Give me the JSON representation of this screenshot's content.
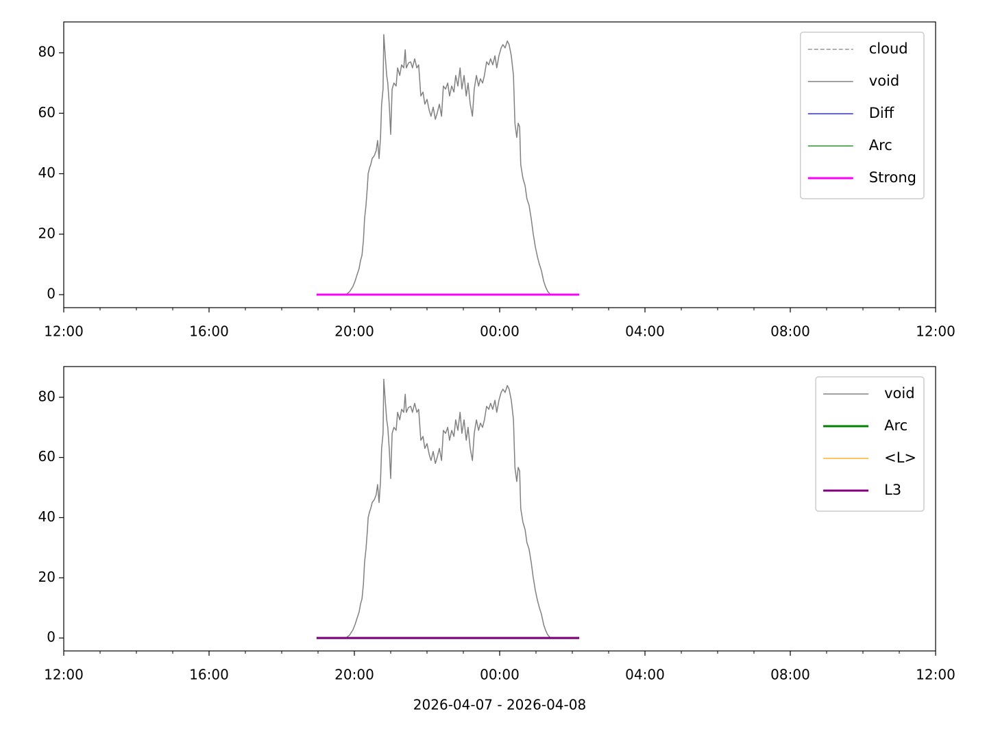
{
  "chart_data": [
    {
      "type": "line",
      "xlim": [
        12,
        36
      ],
      "ylim": [
        -4.3,
        90.2
      ],
      "xticks": [
        {
          "value": 12,
          "label": "12:00"
        },
        {
          "value": 16,
          "label": "16:00"
        },
        {
          "value": 20,
          "label": "20:00"
        },
        {
          "value": 24,
          "label": "00:00"
        },
        {
          "value": 28,
          "label": "04:00"
        },
        {
          "value": 32,
          "label": "08:00"
        },
        {
          "value": 36,
          "label": "12:00"
        }
      ],
      "xminorticks": [
        13,
        14,
        15,
        17,
        18,
        19,
        21,
        22,
        23,
        25,
        26,
        27,
        29,
        30,
        31,
        33,
        34,
        35
      ],
      "yticks": [
        0,
        20,
        40,
        60,
        80
      ],
      "legend": "upper right",
      "series": [
        {
          "name": "cloud",
          "color": "#808080",
          "width": 1.2,
          "dashed": true,
          "x": [
            18.96,
            26.19
          ],
          "values": [
            0,
            0
          ]
        },
        {
          "name": "void",
          "color": "#808080",
          "width": 1.5,
          "dashed": false,
          "x": [
            19.77,
            19.87,
            19.96,
            20.02,
            20.08,
            20.13,
            20.17,
            20.21,
            20.25,
            20.28,
            20.32,
            20.36,
            20.38,
            20.42,
            20.45,
            20.49,
            20.55,
            20.6,
            20.64,
            20.68,
            20.72,
            20.75,
            20.79,
            20.81,
            20.85,
            20.89,
            20.92,
            20.96,
            21.0,
            21.04,
            21.09,
            21.15,
            21.19,
            21.25,
            21.3,
            21.36,
            21.4,
            21.43,
            21.49,
            21.55,
            21.6,
            21.66,
            21.72,
            21.77,
            21.83,
            21.89,
            21.94,
            22.0,
            22.06,
            22.11,
            22.17,
            22.23,
            22.28,
            22.34,
            22.4,
            22.45,
            22.51,
            22.57,
            22.62,
            22.68,
            22.74,
            22.79,
            22.85,
            22.91,
            22.96,
            23.02,
            23.08,
            23.13,
            23.19,
            23.25,
            23.3,
            23.36,
            23.42,
            23.47,
            23.53,
            23.58,
            23.64,
            23.7,
            23.75,
            23.81,
            23.87,
            23.92,
            23.98,
            24.04,
            24.09,
            24.15,
            24.21,
            24.26,
            24.32,
            24.38,
            24.42,
            24.47,
            24.51,
            24.55,
            24.58,
            24.64,
            24.7,
            24.75,
            24.81,
            24.87,
            24.92,
            24.98,
            25.04,
            25.09,
            25.15,
            25.21,
            25.26,
            25.32,
            25.4
          ],
          "values": [
            0,
            1,
            2.7,
            4.5,
            6.8,
            8.6,
            11.3,
            13,
            18,
            25,
            29.5,
            36,
            40,
            42,
            43,
            45,
            46,
            47.6,
            51,
            45,
            52,
            63,
            68,
            86,
            79,
            72.5,
            70,
            63,
            53,
            68,
            70,
            69,
            75,
            72.5,
            76,
            75,
            81,
            75,
            76.6,
            77,
            75,
            78,
            75,
            76,
            65.7,
            67,
            63,
            64.6,
            61,
            59,
            62,
            58,
            60,
            63,
            59,
            69,
            68,
            70,
            65.7,
            69,
            67,
            72.5,
            69,
            75,
            68,
            72.5,
            65.7,
            70,
            63,
            59,
            68,
            72.5,
            69,
            71.4,
            70,
            72.5,
            77,
            76,
            78,
            76,
            79,
            75,
            79,
            81.6,
            82.7,
            81.6,
            83.9,
            82.7,
            79,
            72.5,
            56.7,
            52,
            56.7,
            55.5,
            43,
            38.5,
            36,
            31.7,
            29.5,
            25,
            20.4,
            15.9,
            12.5,
            10.2,
            7.9,
            4.5,
            2.7,
            1.1,
            0
          ]
        },
        {
          "name": "Diff",
          "color": "#0000ff",
          "width": 1.2,
          "dashed": false,
          "x": [
            18.96,
            26.19
          ],
          "values": [
            0,
            0
          ]
        },
        {
          "name": "Arc",
          "color": "#008000",
          "width": 1.2,
          "dashed": false,
          "x": [
            18.96,
            26.19
          ],
          "values": [
            0,
            0
          ]
        },
        {
          "name": "Strong",
          "color": "#ff00ff",
          "width": 3,
          "dashed": false,
          "x": [
            18.96,
            26.19
          ],
          "values": [
            0,
            0
          ]
        }
      ]
    },
    {
      "type": "line",
      "xlim": [
        12,
        36
      ],
      "ylim": [
        -4.3,
        90.2
      ],
      "xticks": [
        {
          "value": 12,
          "label": "12:00"
        },
        {
          "value": 16,
          "label": "16:00"
        },
        {
          "value": 20,
          "label": "20:00"
        },
        {
          "value": 24,
          "label": "00:00"
        },
        {
          "value": 28,
          "label": "04:00"
        },
        {
          "value": 32,
          "label": "08:00"
        },
        {
          "value": 36,
          "label": "12:00"
        }
      ],
      "xminorticks": [
        13,
        14,
        15,
        17,
        18,
        19,
        21,
        22,
        23,
        25,
        26,
        27,
        29,
        30,
        31,
        33,
        34,
        35
      ],
      "yticks": [
        0,
        20,
        40,
        60,
        80
      ],
      "xlabel": "2026-04-07 - 2026-04-08",
      "legend": "upper right",
      "series": [
        {
          "name": "void",
          "color": "#808080",
          "width": 1.5,
          "dashed": false,
          "x": [
            19.77,
            19.87,
            19.96,
            20.02,
            20.08,
            20.13,
            20.17,
            20.21,
            20.25,
            20.28,
            20.32,
            20.36,
            20.38,
            20.42,
            20.45,
            20.49,
            20.55,
            20.6,
            20.64,
            20.68,
            20.72,
            20.75,
            20.79,
            20.81,
            20.85,
            20.89,
            20.92,
            20.96,
            21.0,
            21.04,
            21.09,
            21.15,
            21.19,
            21.25,
            21.3,
            21.36,
            21.4,
            21.43,
            21.49,
            21.55,
            21.6,
            21.66,
            21.72,
            21.77,
            21.83,
            21.89,
            21.94,
            22.0,
            22.06,
            22.11,
            22.17,
            22.23,
            22.28,
            22.34,
            22.4,
            22.45,
            22.51,
            22.57,
            22.62,
            22.68,
            22.74,
            22.79,
            22.85,
            22.91,
            22.96,
            23.02,
            23.08,
            23.13,
            23.19,
            23.25,
            23.3,
            23.36,
            23.42,
            23.47,
            23.53,
            23.58,
            23.64,
            23.7,
            23.75,
            23.81,
            23.87,
            23.92,
            23.98,
            24.04,
            24.09,
            24.15,
            24.21,
            24.26,
            24.32,
            24.38,
            24.42,
            24.47,
            24.51,
            24.55,
            24.58,
            24.64,
            24.7,
            24.75,
            24.81,
            24.87,
            24.92,
            24.98,
            25.04,
            25.09,
            25.15,
            25.21,
            25.26,
            25.32,
            25.4
          ],
          "values": [
            0,
            1,
            2.7,
            4.5,
            6.8,
            8.6,
            11.3,
            13,
            18,
            25,
            29.5,
            36,
            40,
            42,
            43,
            45,
            46,
            47.6,
            51,
            45,
            52,
            63,
            68,
            86,
            79,
            72.5,
            70,
            63,
            53,
            68,
            70,
            69,
            75,
            72.5,
            76,
            75,
            81,
            75,
            76.6,
            77,
            75,
            78,
            75,
            76,
            65.7,
            67,
            63,
            64.6,
            61,
            59,
            62,
            58,
            60,
            63,
            59,
            69,
            68,
            70,
            65.7,
            69,
            67,
            72.5,
            69,
            75,
            68,
            72.5,
            65.7,
            70,
            63,
            59,
            68,
            72.5,
            69,
            71.4,
            70,
            72.5,
            77,
            76,
            78,
            76,
            79,
            75,
            79,
            81.6,
            82.7,
            81.6,
            83.9,
            82.7,
            79,
            72.5,
            56.7,
            52,
            56.7,
            55.5,
            43,
            38.5,
            36,
            31.7,
            29.5,
            25,
            20.4,
            15.9,
            12.5,
            10.2,
            7.9,
            4.5,
            2.7,
            1.1,
            0
          ]
        },
        {
          "name": "Arc",
          "color": "#008000",
          "width": 3,
          "dashed": false,
          "x": [
            18.96,
            26.19
          ],
          "values": [
            0,
            0
          ]
        },
        {
          "name": "<L>",
          "color": "#ffa500",
          "width": 1.2,
          "dashed": false,
          "x": [
            18.96,
            26.19
          ],
          "values": [
            0,
            0
          ]
        },
        {
          "name": "L3",
          "color": "#800080",
          "width": 3,
          "dashed": false,
          "x": [
            18.96,
            26.19
          ],
          "values": [
            0,
            0
          ]
        }
      ]
    }
  ]
}
